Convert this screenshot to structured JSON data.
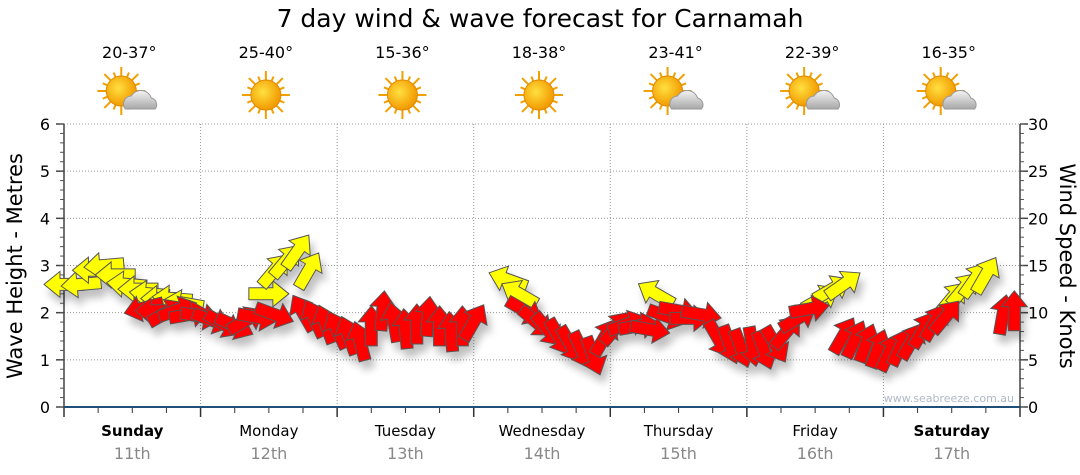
{
  "chart_data": {
    "type": "scatter",
    "title": "7 day wind & wave forecast for Carnamah",
    "ylabel": "Wave Height - Metres",
    "y2label": "Wind Speed - Knots",
    "ylim": [
      0,
      6
    ],
    "y2lim": [
      0,
      30
    ],
    "yticks": [
      "0",
      "1",
      "2",
      "3",
      "4",
      "5",
      "6"
    ],
    "y2ticks": [
      "0",
      "5",
      "10",
      "15",
      "20",
      "25",
      "30"
    ],
    "xlim_hours": [
      0,
      168
    ],
    "grid": true,
    "watermark": "www.seabreeze.com.au",
    "days": [
      {
        "name": "Sunday",
        "date": "11th",
        "bold": true,
        "temp": "20-37°",
        "icon": "partly-cloudy"
      },
      {
        "name": "Monday",
        "date": "12th",
        "bold": false,
        "temp": "25-40°",
        "icon": "sunny"
      },
      {
        "name": "Tuesday",
        "date": "13th",
        "bold": false,
        "temp": "15-36°",
        "icon": "sunny"
      },
      {
        "name": "Wednesday",
        "date": "14th",
        "bold": false,
        "temp": "18-38°",
        "icon": "sunny"
      },
      {
        "name": "Thursday",
        "date": "15th",
        "bold": false,
        "temp": "23-41°",
        "icon": "partly-cloudy"
      },
      {
        "name": "Friday",
        "date": "16th",
        "bold": false,
        "temp": "22-39°",
        "icon": "partly-cloudy"
      },
      {
        "name": "Saturday",
        "date": "17th",
        "bold": true,
        "temp": "16-35°",
        "icon": "partly-cloudy"
      }
    ],
    "series": [
      {
        "name": "Wave height (m)",
        "axis": "left",
        "color": "#ffff00",
        "points": [
          [
            0,
            2.6,
            270
          ],
          [
            3,
            2.6,
            265
          ],
          [
            5,
            2.9,
            270
          ],
          [
            7,
            3.0,
            265
          ],
          [
            9,
            2.8,
            270
          ],
          [
            11,
            2.6,
            275
          ],
          [
            13,
            2.5,
            270
          ],
          [
            15,
            2.4,
            275
          ],
          [
            17,
            2.3,
            270
          ],
          [
            19,
            2.3,
            275
          ],
          [
            21,
            2.2,
            280
          ],
          [
            36,
            2.4,
            90
          ],
          [
            37,
            2.9,
            40
          ],
          [
            39,
            3.1,
            40
          ],
          [
            41,
            3.3,
            35
          ],
          [
            43,
            2.9,
            30
          ],
          [
            78,
            2.7,
            290
          ],
          [
            80,
            2.4,
            300
          ],
          [
            104,
            2.4,
            300
          ],
          [
            133,
            2.3,
            60
          ],
          [
            135,
            2.5,
            60
          ],
          [
            137,
            2.6,
            55
          ],
          [
            156,
            2.3,
            40
          ],
          [
            158,
            2.5,
            40
          ],
          [
            160,
            2.7,
            35
          ],
          [
            162,
            2.8,
            30
          ]
        ]
      },
      {
        "name": "Wind speed (kn)",
        "axis": "right",
        "color": "#ff0000",
        "points": [
          [
            14,
            10.5,
            255
          ],
          [
            16,
            10.2,
            270
          ],
          [
            18,
            10.0,
            60
          ],
          [
            20,
            10.3,
            70
          ],
          [
            22,
            9.8,
            80
          ],
          [
            24,
            9.6,
            100
          ],
          [
            26,
            9.2,
            110
          ],
          [
            28,
            8.8,
            120
          ],
          [
            30,
            8.6,
            115
          ],
          [
            32,
            9.2,
            60
          ],
          [
            34,
            9.5,
            100
          ],
          [
            37,
            9.8,
            110
          ],
          [
            42,
            10.0,
            330
          ],
          [
            44,
            9.4,
            335
          ],
          [
            46,
            8.8,
            340
          ],
          [
            48,
            8.2,
            335
          ],
          [
            50,
            7.6,
            340
          ],
          [
            52,
            7.0,
            345
          ],
          [
            54,
            8.6,
            0
          ],
          [
            56,
            10.2,
            5
          ],
          [
            58,
            9.0,
            350
          ],
          [
            60,
            8.3,
            355
          ],
          [
            62,
            8.8,
            0
          ],
          [
            64,
            9.6,
            5
          ],
          [
            66,
            8.6,
            0
          ],
          [
            68,
            8.0,
            355
          ],
          [
            70,
            8.6,
            0
          ],
          [
            72,
            9.0,
            30
          ],
          [
            81,
            10.2,
            120
          ],
          [
            83,
            9.0,
            130
          ],
          [
            85,
            8.2,
            140
          ],
          [
            87,
            7.4,
            150
          ],
          [
            89,
            6.6,
            150
          ],
          [
            91,
            6.0,
            155
          ],
          [
            93,
            5.4,
            160
          ],
          [
            95,
            7.4,
            30
          ],
          [
            97,
            8.4,
            40
          ],
          [
            99,
            8.8,
            70
          ],
          [
            101,
            8.6,
            80
          ],
          [
            103,
            8.2,
            100
          ],
          [
            106,
            9.6,
            110
          ],
          [
            108,
            10.2,
            100
          ],
          [
            110,
            9.4,
            90
          ],
          [
            112,
            9.8,
            100
          ],
          [
            115,
            7.2,
            150
          ],
          [
            117,
            6.6,
            160
          ],
          [
            119,
            6.2,
            160
          ],
          [
            121,
            6.4,
            170
          ],
          [
            123,
            6.0,
            160
          ],
          [
            125,
            6.6,
            150
          ],
          [
            127,
            8.0,
            40
          ],
          [
            129,
            9.4,
            60
          ],
          [
            131,
            10.4,
            80
          ],
          [
            137,
            7.6,
            30
          ],
          [
            139,
            7.2,
            25
          ],
          [
            141,
            6.8,
            20
          ],
          [
            143,
            6.2,
            20
          ],
          [
            145,
            5.8,
            25
          ],
          [
            147,
            6.4,
            25
          ],
          [
            149,
            7.0,
            30
          ],
          [
            151,
            8.2,
            30
          ],
          [
            153,
            9.0,
            30
          ],
          [
            155,
            9.6,
            40
          ],
          [
            165,
            9.8,
            10
          ],
          [
            167,
            10.2,
            0
          ]
        ]
      }
    ]
  }
}
